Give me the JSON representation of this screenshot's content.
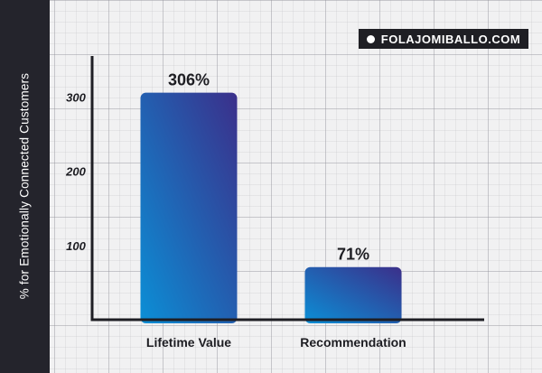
{
  "brand": {
    "text": "FOLAJOMIBALLO.COM",
    "icon": "dot-icon"
  },
  "colors": {
    "sidebar": "#24242c",
    "bar_top": "#3b2f8a",
    "bar_bottom": "#0b8fd6",
    "axis": "#1e1e24"
  },
  "chart_data": {
    "type": "bar",
    "title": "",
    "xlabel": "",
    "ylabel": "% for Emotionally Connected Customers",
    "categories": [
      "Lifetime Value",
      "Recommendation"
    ],
    "values": [
      306,
      71
    ],
    "data_labels": [
      "306%",
      "71%"
    ],
    "yticks": [
      100,
      200,
      300
    ],
    "ylim": [
      0,
      350
    ],
    "grid": true
  }
}
